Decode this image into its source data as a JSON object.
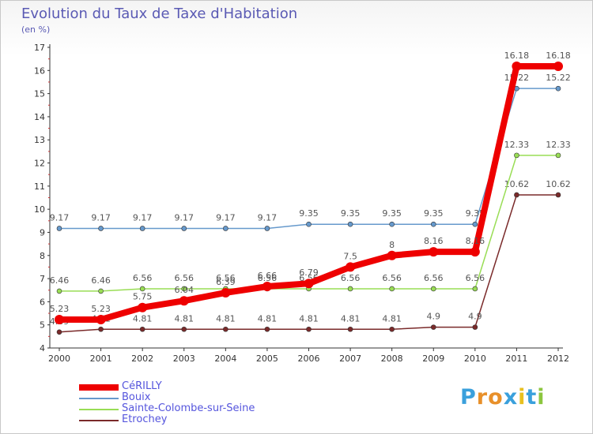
{
  "title": "Evolution du Taux de Taxe d'Habitation",
  "subtitle": "(en %)",
  "logo": {
    "letters": [
      "P",
      "r",
      "o",
      "x",
      "i",
      "t",
      "i"
    ],
    "colors": [
      "#3aa0dc",
      "#e8902a",
      "#e8902a",
      "#3aa0dc",
      "#e8c020",
      "#3aa0dc",
      "#8cc63f"
    ]
  },
  "chart_data": {
    "type": "line",
    "title": "Evolution du Taux de Taxe d'Habitation",
    "ylabel": "(en %)",
    "xlabel": "",
    "ylim": [
      4,
      17
    ],
    "yticks": [
      4,
      5,
      6,
      7,
      8,
      9,
      10,
      11,
      12,
      13,
      14,
      15,
      16,
      17
    ],
    "x": [
      "2000",
      "2001",
      "2002",
      "2003",
      "2004",
      "2005",
      "2006",
      "2007",
      "2008",
      "2009",
      "2010",
      "2011",
      "2012"
    ],
    "grid": false,
    "legend_position": "bottom-left",
    "series": [
      {
        "name": "Etrochey",
        "color": "#7a2a2a",
        "values": [
          4.69,
          4.81,
          4.81,
          4.81,
          4.81,
          4.81,
          4.81,
          4.81,
          4.81,
          4.9,
          4.9,
          10.62,
          10.62
        ],
        "labels": [
          "4.69",
          "4.81",
          "4.81",
          "4.81",
          "4.81",
          "4.81",
          "4.81",
          "4.81",
          "4.81",
          "4.9",
          "4.9",
          "10.62",
          "10.62"
        ]
      },
      {
        "name": "Sainte-Colombe-sur-Seine",
        "color": "#99dd55",
        "values": [
          6.46,
          6.46,
          6.56,
          6.56,
          6.56,
          6.56,
          6.56,
          6.56,
          6.56,
          6.56,
          6.56,
          12.33,
          12.33
        ],
        "labels": [
          "6.46",
          "6.46",
          "6.56",
          "6.56",
          "6.56",
          "6.56",
          "6.56",
          "6.56",
          "6.56",
          "6.56",
          "6.56",
          "12.33",
          "12.33"
        ]
      },
      {
        "name": "Bouix",
        "color": "#6699cc",
        "values": [
          9.17,
          9.17,
          9.17,
          9.17,
          9.17,
          9.17,
          9.35,
          9.35,
          9.35,
          9.35,
          9.35,
          15.22,
          15.22
        ],
        "labels": [
          "9.17",
          "9.17",
          "9.17",
          "9.17",
          "9.17",
          "9.17",
          "9.35",
          "9.35",
          "9.35",
          "9.35",
          "9.35",
          "15.22",
          "15.22"
        ]
      },
      {
        "name": "CéRILLY",
        "color": "#ee0000",
        "values": [
          5.23,
          5.23,
          5.75,
          6.04,
          6.39,
          6.66,
          6.79,
          7.5,
          8,
          8.16,
          8.16,
          16.18,
          16.18
        ],
        "labels": [
          "5.23",
          "5.23",
          "5.75",
          "6.04",
          "6.39",
          "6.66",
          "6.79",
          "7.5",
          "8",
          "8.16",
          "8.16",
          "16.18",
          "16.18"
        ]
      }
    ]
  },
  "legend": [
    {
      "name": "CéRILLY",
      "color": "#ee0000"
    },
    {
      "name": "Bouix",
      "color": "#6699cc"
    },
    {
      "name": "Sainte-Colombe-sur-Seine",
      "color": "#99dd55"
    },
    {
      "name": "Etrochey",
      "color": "#7a2a2a"
    }
  ]
}
